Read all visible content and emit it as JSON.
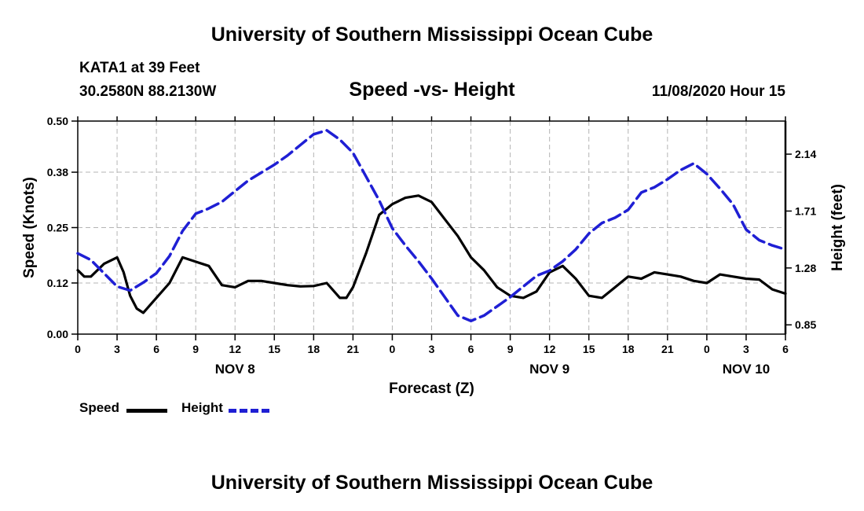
{
  "header": {
    "title": "University of Southern Mississippi Ocean Cube",
    "station": "KATA1 at 39 Feet",
    "coords": "30.2580N 88.2130W",
    "chart_title": "Speed -vs- Height",
    "datetime": "11/08/2020 Hour 15"
  },
  "footer": {
    "title": "University of Southern Mississippi Ocean Cube"
  },
  "legend": {
    "speed": "Speed",
    "height": "Height"
  },
  "colors": {
    "speed": "#000000",
    "height": "#1f1fd4",
    "grid": "#b4b4b4"
  },
  "chart_data": {
    "type": "line",
    "title": "Speed -vs- Height",
    "xlabel": "Forecast (Z)",
    "ylabel_left": "Speed (Knots)",
    "ylabel_right": "Height (feet)",
    "x_range": [
      0,
      54
    ],
    "x_tick_labels": [
      "0",
      "3",
      "6",
      "9",
      "12",
      "15",
      "18",
      "21",
      "0",
      "3",
      "6",
      "9",
      "12",
      "15",
      "18",
      "21",
      "0",
      "3",
      "6"
    ],
    "day_labels": [
      {
        "label": "NOV 8",
        "x": 12
      },
      {
        "label": "NOV 9",
        "x": 36
      },
      {
        "label": "NOV 10",
        "x": 51
      }
    ],
    "ylim_left": [
      0,
      0.5
    ],
    "yticks_left": [
      "0.00",
      "0.12",
      "0.25",
      "0.38",
      "0.50"
    ],
    "ylim_right": [
      0.78,
      2.39
    ],
    "yticks_right": [
      "0.85",
      "1.28",
      "1.71",
      "2.14"
    ],
    "grid": true,
    "series": [
      {
        "name": "Speed",
        "axis": "left",
        "x": [
          0,
          0.5,
          1,
          2,
          3,
          3.5,
          4,
          4.5,
          5,
          6,
          7,
          8,
          9,
          10,
          11,
          12,
          13,
          14,
          15,
          16,
          17,
          18,
          19,
          20,
          20.5,
          21,
          22,
          23,
          24,
          25,
          26,
          27,
          28,
          29,
          30,
          31,
          32,
          33,
          34,
          35,
          36,
          37,
          38,
          39,
          40,
          41,
          42,
          43,
          44,
          45,
          46,
          47,
          48,
          49,
          50,
          51,
          52,
          53,
          54
        ],
        "values": [
          0.15,
          0.135,
          0.135,
          0.165,
          0.18,
          0.145,
          0.09,
          0.06,
          0.05,
          0.085,
          0.12,
          0.18,
          0.17,
          0.16,
          0.115,
          0.11,
          0.125,
          0.125,
          0.12,
          0.115,
          0.112,
          0.113,
          0.12,
          0.085,
          0.085,
          0.11,
          0.19,
          0.28,
          0.305,
          0.32,
          0.325,
          0.31,
          0.27,
          0.23,
          0.18,
          0.15,
          0.11,
          0.09,
          0.085,
          0.1,
          0.145,
          0.16,
          0.13,
          0.09,
          0.085,
          0.11,
          0.135,
          0.13,
          0.145,
          0.14,
          0.135,
          0.125,
          0.12,
          0.14,
          0.135,
          0.13,
          0.128,
          0.105,
          0.095
        ]
      },
      {
        "name": "Height",
        "axis": "right",
        "x": [
          0,
          1,
          2,
          3,
          4,
          5,
          6,
          7,
          8,
          9,
          10,
          11,
          12,
          13,
          14,
          15,
          16,
          17,
          18,
          19,
          20,
          21,
          22,
          23,
          24,
          25,
          26,
          27,
          28,
          29,
          30,
          31,
          32,
          33,
          34,
          35,
          36,
          37,
          38,
          39,
          40,
          41,
          42,
          43,
          44,
          45,
          46,
          47,
          48,
          49,
          50,
          51,
          52,
          53,
          54
        ],
        "values": [
          1.39,
          1.34,
          1.24,
          1.14,
          1.11,
          1.17,
          1.24,
          1.37,
          1.56,
          1.69,
          1.73,
          1.78,
          1.86,
          1.94,
          2.0,
          2.06,
          2.13,
          2.21,
          2.29,
          2.32,
          2.25,
          2.15,
          1.97,
          1.79,
          1.58,
          1.45,
          1.33,
          1.2,
          1.06,
          0.92,
          0.88,
          0.92,
          0.99,
          1.06,
          1.14,
          1.22,
          1.26,
          1.33,
          1.42,
          1.54,
          1.62,
          1.66,
          1.72,
          1.85,
          1.89,
          1.95,
          2.02,
          2.07,
          1.99,
          1.88,
          1.76,
          1.57,
          1.49,
          1.45,
          1.42
        ]
      }
    ]
  }
}
